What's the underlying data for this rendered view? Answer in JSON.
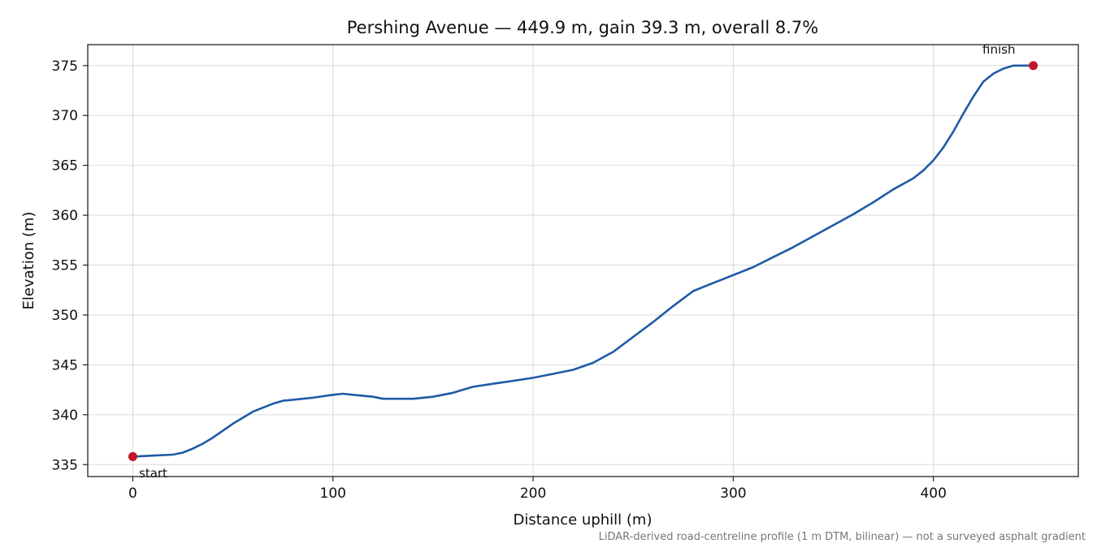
{
  "chart_data": {
    "type": "line",
    "title": "Pershing Avenue — 449.9 m, gain 39.3 m, overall 8.7%",
    "xlabel": "Distance uphill (m)",
    "ylabel": "Elevation (m)",
    "xlim": [
      -22.5,
      472.4
    ],
    "ylim": [
      333.8,
      377.1
    ],
    "xticks": [
      0,
      100,
      200,
      300,
      400
    ],
    "xtick_labels": [
      "0",
      "100",
      "200",
      "300",
      "400"
    ],
    "yticks": [
      335,
      340,
      345,
      350,
      355,
      360,
      365,
      370,
      375
    ],
    "ytick_labels": [
      "335",
      "340",
      "345",
      "350",
      "355",
      "360",
      "365",
      "370",
      "375"
    ],
    "grid": true,
    "line_color": "#1f5aa6",
    "marker_color": "#c0182a",
    "series": [
      {
        "x": [
          0,
          10,
          20,
          25,
          30,
          35,
          40,
          50,
          60,
          65,
          70,
          75,
          80,
          90,
          100,
          105,
          110,
          120,
          125,
          130,
          135,
          140,
          150,
          160,
          170,
          180,
          190,
          200,
          210,
          220,
          230,
          240,
          250,
          260,
          270,
          280,
          290,
          300,
          310,
          320,
          330,
          340,
          350,
          360,
          370,
          380,
          390,
          395,
          400,
          405,
          410,
          415,
          420,
          425,
          430,
          435,
          440,
          445,
          449.9
        ],
        "y": [
          335.8,
          335.9,
          336.0,
          336.2,
          336.6,
          337.1,
          337.7,
          339.1,
          340.3,
          340.7,
          341.1,
          341.4,
          341.5,
          341.7,
          342.0,
          342.1,
          342.0,
          341.8,
          341.6,
          341.6,
          341.6,
          341.6,
          341.8,
          342.2,
          342.8,
          343.1,
          343.4,
          343.7,
          344.1,
          344.5,
          345.2,
          346.3,
          347.8,
          349.3,
          350.9,
          352.4,
          353.2,
          354.0,
          354.8,
          355.8,
          356.8,
          357.9,
          359.0,
          360.1,
          361.3,
          362.6,
          363.7,
          364.5,
          365.5,
          366.8,
          368.4,
          370.2,
          371.9,
          373.4,
          374.2,
          374.7,
          375.0,
          375.0,
          375.0
        ]
      }
    ],
    "annotations": [
      {
        "label": "start",
        "x": 0,
        "y": 335.8
      },
      {
        "label": "finish",
        "x": 449.9,
        "y": 375.0
      }
    ],
    "footnote": "LiDAR-derived road-centreline profile (1 m DTM, bilinear) — not a surveyed asphalt gradient"
  }
}
